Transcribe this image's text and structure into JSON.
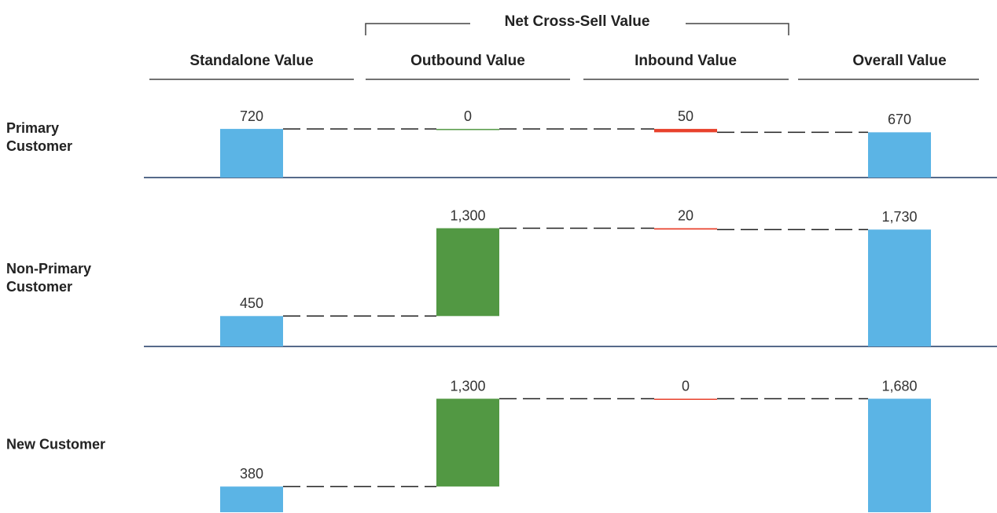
{
  "chart_data": {
    "type": "waterfall",
    "group_title": "Net Cross-Sell Value",
    "categories": [
      "Primary Customer",
      "Non-Primary Customer",
      "New Customer"
    ],
    "series": [
      {
        "name": "Standalone Value",
        "color": "#5bb4e5",
        "kind": "total",
        "values": [
          720,
          450,
          380
        ]
      },
      {
        "name": "Outbound Value",
        "color": "#529843",
        "kind": "increase",
        "values": [
          0,
          1300,
          1300
        ],
        "value_labels": [
          "0",
          "1,300",
          "1,300"
        ]
      },
      {
        "name": "Inbound Value",
        "color": "#e8412c",
        "kind": "decrease",
        "values": [
          50,
          20,
          0
        ]
      },
      {
        "name": "Overall Value",
        "color": "#5bb4e5",
        "kind": "total",
        "values": [
          670,
          1730,
          1680
        ],
        "value_labels": [
          "670",
          "1,730",
          "1,680"
        ]
      }
    ],
    "ylim": [
      0,
      2000
    ]
  }
}
